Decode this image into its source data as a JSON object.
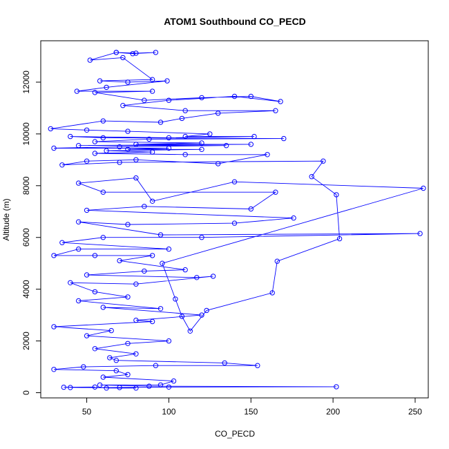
{
  "chart_data": {
    "type": "line",
    "title": "ATOM1 Southbound CO_PECD",
    "xlabel": "CO_PECD",
    "ylabel": "Altitude (m)",
    "xlim": [
      22,
      258
    ],
    "ylim": [
      -200,
      13600
    ],
    "xticks": [
      50,
      100,
      150,
      200,
      250
    ],
    "yticks": [
      0,
      2000,
      4000,
      6000,
      8000,
      10000,
      12000
    ],
    "grid": false,
    "legend": "none",
    "markers": "open-circle",
    "colors": {
      "series": "#0000ff",
      "axes": "#000000"
    },
    "series": [
      {
        "points": [
          [
            68,
            13150
          ],
          [
            80,
            13120
          ],
          [
            92,
            13150
          ],
          [
            78,
            13100
          ],
          [
            68,
            13150
          ],
          [
            52,
            12850
          ],
          [
            72,
            12950
          ],
          [
            90,
            12100
          ],
          [
            58,
            12050
          ],
          [
            75,
            12000
          ],
          [
            99,
            12050
          ],
          [
            62,
            11800
          ],
          [
            44,
            11650
          ],
          [
            90,
            11650
          ],
          [
            55,
            11600
          ],
          [
            85,
            11300
          ],
          [
            120,
            11400
          ],
          [
            150,
            11450
          ],
          [
            168,
            11250
          ],
          [
            140,
            11450
          ],
          [
            100,
            11300
          ],
          [
            72,
            11100
          ],
          [
            110,
            10900
          ],
          [
            165,
            10900
          ],
          [
            130,
            10800
          ],
          [
            108,
            10600
          ],
          [
            95,
            10450
          ],
          [
            60,
            10500
          ],
          [
            28,
            10200
          ],
          [
            50,
            10150
          ],
          [
            75,
            10100
          ],
          [
            125,
            10000
          ],
          [
            110,
            9900
          ],
          [
            152,
            9900
          ],
          [
            100,
            9850
          ],
          [
            40,
            9900
          ],
          [
            60,
            9850
          ],
          [
            170,
            9820
          ],
          [
            88,
            9800
          ],
          [
            55,
            9700
          ],
          [
            120,
            9650
          ],
          [
            80,
            9600
          ],
          [
            150,
            9600
          ],
          [
            45,
            9550
          ],
          [
            135,
            9550
          ],
          [
            70,
            9500
          ],
          [
            30,
            9450
          ],
          [
            100,
            9450
          ],
          [
            75,
            9400
          ],
          [
            120,
            9400
          ],
          [
            62,
            9350
          ],
          [
            90,
            9300
          ],
          [
            55,
            9250
          ],
          [
            110,
            9200
          ],
          [
            160,
            9200
          ],
          [
            130,
            8850
          ],
          [
            80,
            9000
          ],
          [
            50,
            8950
          ],
          [
            35,
            8800
          ],
          [
            70,
            8900
          ],
          [
            194,
            8950
          ],
          [
            187,
            8350
          ],
          [
            202,
            7650
          ],
          [
            204,
            5950
          ],
          [
            166,
            5080
          ],
          [
            163,
            3860
          ],
          [
            123,
            3180
          ],
          [
            113,
            2380
          ],
          [
            108,
            2950
          ],
          [
            104,
            3620
          ],
          [
            96,
            5000
          ],
          [
            255,
            7900
          ],
          [
            140,
            8150
          ],
          [
            90,
            7400
          ],
          [
            80,
            8300
          ],
          [
            45,
            8100
          ],
          [
            60,
            7750
          ],
          [
            165,
            7750
          ],
          [
            150,
            7100
          ],
          [
            85,
            7200
          ],
          [
            50,
            7050
          ],
          [
            176,
            6750
          ],
          [
            140,
            6550
          ],
          [
            75,
            6500
          ],
          [
            45,
            6600
          ],
          [
            95,
            6100
          ],
          [
            253,
            6150
          ],
          [
            120,
            6000
          ],
          [
            60,
            6000
          ],
          [
            35,
            5800
          ],
          [
            100,
            5550
          ],
          [
            45,
            5550
          ],
          [
            30,
            5300
          ],
          [
            55,
            5300
          ],
          [
            90,
            5300
          ],
          [
            70,
            5100
          ],
          [
            110,
            4750
          ],
          [
            85,
            4700
          ],
          [
            50,
            4550
          ],
          [
            117,
            4450
          ],
          [
            127,
            4500
          ],
          [
            80,
            4200
          ],
          [
            40,
            4250
          ],
          [
            55,
            3900
          ],
          [
            75,
            3700
          ],
          [
            45,
            3550
          ],
          [
            95,
            3250
          ],
          [
            60,
            3300
          ],
          [
            120,
            3000
          ],
          [
            80,
            2800
          ],
          [
            90,
            2750
          ],
          [
            30,
            2550
          ],
          [
            65,
            2400
          ],
          [
            50,
            2200
          ],
          [
            100,
            2000
          ],
          [
            75,
            1900
          ],
          [
            55,
            1700
          ],
          [
            80,
            1500
          ],
          [
            64,
            1350
          ],
          [
            68,
            1250
          ],
          [
            134,
            1150
          ],
          [
            154,
            1050
          ],
          [
            92,
            1050
          ],
          [
            48,
            1000
          ],
          [
            30,
            900
          ],
          [
            68,
            850
          ],
          [
            75,
            700
          ],
          [
            60,
            600
          ],
          [
            103,
            450
          ],
          [
            95,
            300
          ],
          [
            58,
            300
          ],
          [
            88,
            250
          ],
          [
            202,
            230
          ],
          [
            100,
            220
          ],
          [
            70,
            200
          ],
          [
            40,
            200
          ],
          [
            55,
            220
          ],
          [
            36,
            210
          ],
          [
            80,
            180
          ],
          [
            62,
            180
          ]
        ]
      }
    ]
  }
}
